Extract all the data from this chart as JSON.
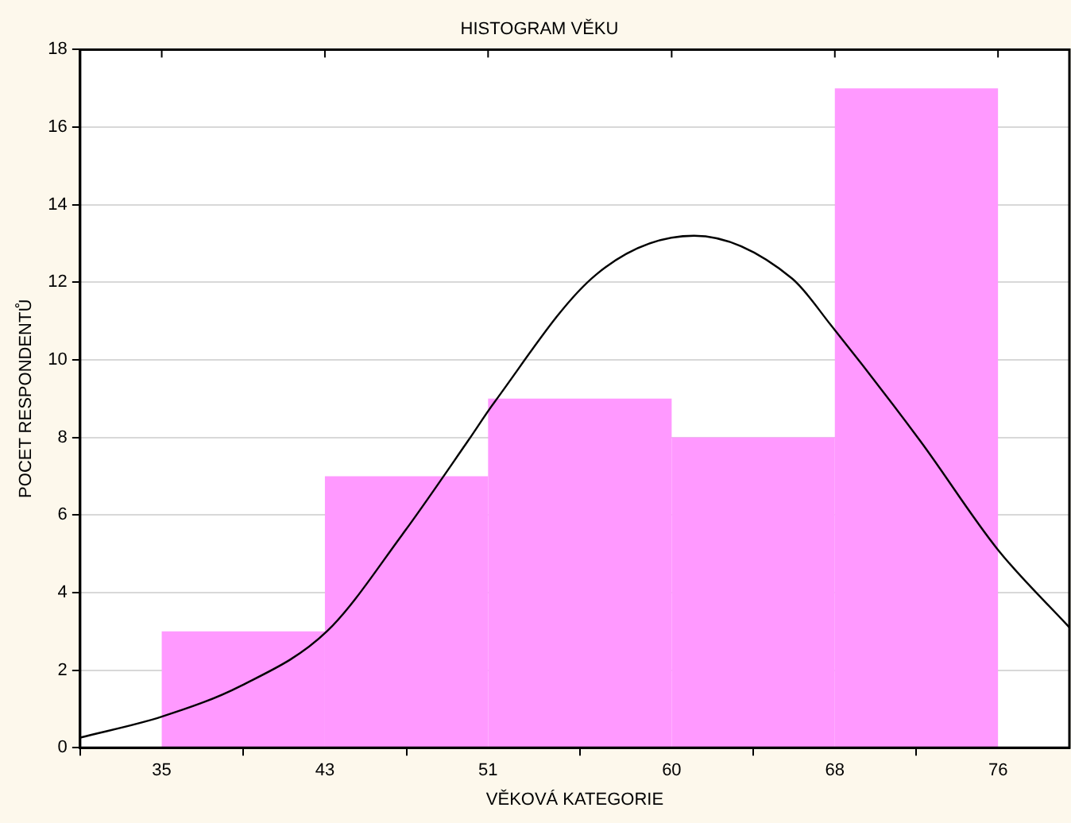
{
  "chart_data": {
    "type": "histogram",
    "title": "HISTOGRAM VĚKU",
    "xlabel": "VĚKOVÁ KATEGORIE",
    "ylabel": "POCET RESPONDENTŮ",
    "bins": [
      35,
      43,
      51,
      60,
      68,
      76
    ],
    "series": [
      {
        "color": "#ff99ff",
        "values": [
          3,
          7,
          9,
          8,
          17
        ]
      },
      {
        "type": "line",
        "color": "#000000",
        "x": [
          31,
          35,
          38.9,
          43.1,
          46.8,
          50,
          51.3,
          56.3,
          61.1,
          65.9,
          67.8,
          72.2,
          76,
          79.5
        ],
        "values": [
          0.26,
          0.8,
          1.6,
          3.0,
          5.5,
          7.9,
          8.9,
          12.2,
          13.2,
          12.1,
          10.9,
          7.9,
          5.1,
          3.1
        ]
      }
    ],
    "xlim": [
      31,
      79.5
    ],
    "xticks": [
      35,
      43,
      51,
      60,
      68,
      76
    ],
    "ylim": [
      0,
      18
    ],
    "yticks": [
      0,
      2,
      4,
      6,
      8,
      10,
      12,
      14,
      16,
      18
    ],
    "grid": "y",
    "legend": false
  }
}
